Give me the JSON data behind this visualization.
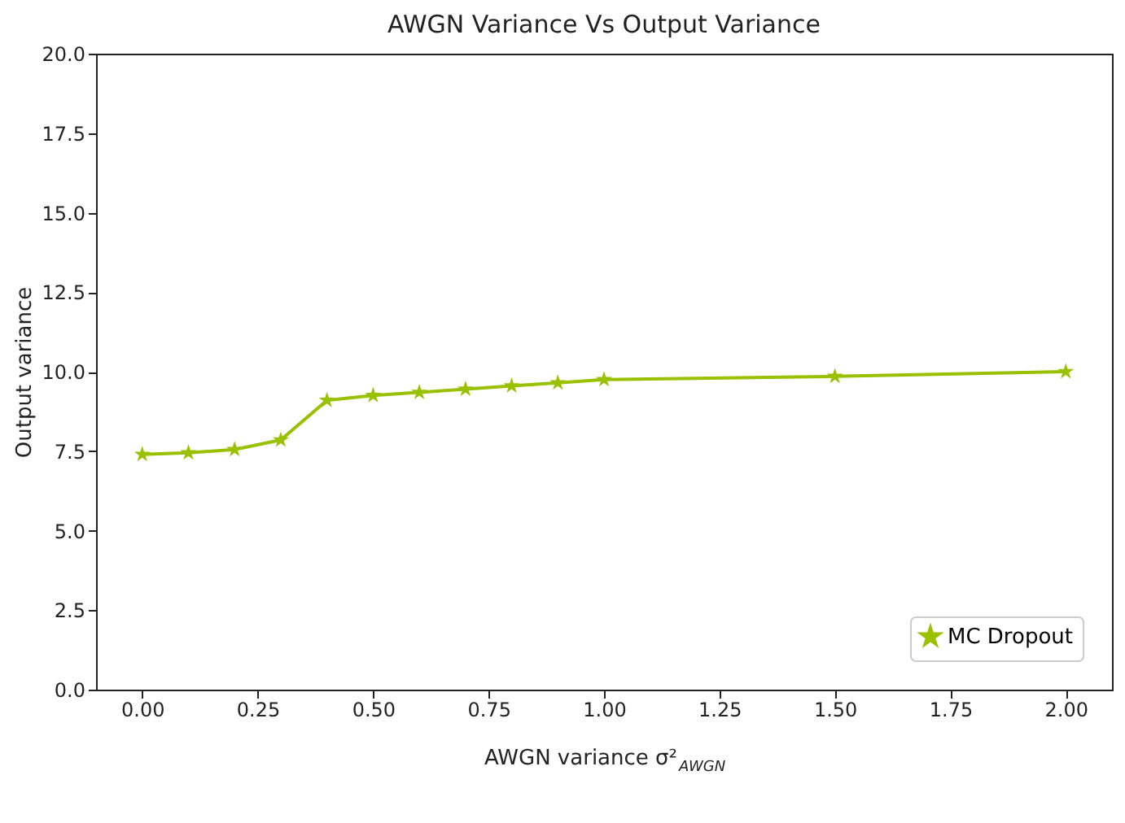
{
  "chart_data": {
    "type": "line",
    "title": "AWGN Variance Vs Output Variance",
    "xlabel": "AWGN variance σ²$_{AWGN}$",
    "ylabel": "Output variance",
    "x": [
      0,
      0.1,
      0.2,
      0.3,
      0.4,
      0.5,
      0.6,
      0.7,
      0.8,
      0.9,
      1.0,
      1.5,
      2.0
    ],
    "series": [
      {
        "name": "MC Dropout",
        "color": "#99c100",
        "values": [
          7.4,
          7.45,
          7.55,
          7.85,
          9.1,
          9.25,
          9.35,
          9.45,
          9.55,
          9.65,
          9.75,
          9.85,
          10.0
        ]
      }
    ],
    "xlim": [
      -0.1,
      2.1
    ],
    "ylim": [
      0,
      20
    ],
    "xticks": [
      {
        "value": 0,
        "label": "0.00"
      },
      {
        "value": 0.25,
        "label": "0.25"
      },
      {
        "value": 0.5,
        "label": "0.50"
      },
      {
        "value": 0.75,
        "label": "0.75"
      },
      {
        "value": 1,
        "label": "1.00"
      },
      {
        "value": 1.25,
        "label": "1.25"
      },
      {
        "value": 1.5,
        "label": "1.50"
      },
      {
        "value": 1.75,
        "label": "1.75"
      },
      {
        "value": 2,
        "label": "2.00"
      }
    ],
    "yticks": [
      {
        "value": 0,
        "label": "0.0"
      },
      {
        "value": 2.5,
        "label": "2.5"
      },
      {
        "value": 5,
        "label": "5.0"
      },
      {
        "value": 7.5,
        "label": "7.5"
      },
      {
        "value": 10,
        "label": "10.0"
      },
      {
        "value": 12.5,
        "label": "12.5"
      },
      {
        "value": 15,
        "label": "15.0"
      },
      {
        "value": 17.5,
        "label": "17.5"
      },
      {
        "value": 20,
        "label": "20.0"
      }
    ],
    "legend": "bottom right",
    "marker": "star",
    "line_style": "solid",
    "grid": false
  }
}
